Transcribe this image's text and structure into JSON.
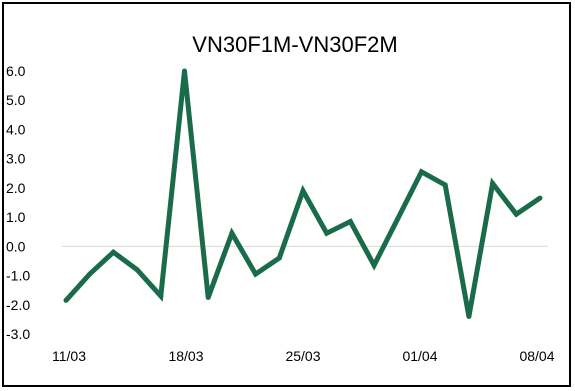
{
  "chart_data": {
    "type": "line",
    "title": "VN30F1M-VN30F2M",
    "xlabel": "",
    "ylabel": "",
    "ylim": [
      -3.0,
      6.0
    ],
    "y_ticks": [
      "6.0",
      "5.0",
      "4.0",
      "3.0",
      "2.0",
      "1.0",
      "0.0",
      "-1.0",
      "-2.0",
      "-3.0"
    ],
    "x_ticks": [
      "11/03",
      "18/03",
      "25/03",
      "01/04",
      "08/04"
    ],
    "grid": false,
    "legend": "none",
    "colors": {
      "line": "#1a6b4a",
      "zero_axis": "#d9d9d9"
    },
    "series": [
      {
        "values": [
          -1.85,
          -0.95,
          -0.2,
          -0.8,
          -1.7,
          6.0,
          -1.75,
          0.45,
          -0.95,
          -0.4,
          1.9,
          0.45,
          0.85,
          -0.65,
          0.95,
          2.55,
          2.1,
          -2.4,
          2.15,
          1.1,
          1.65
        ]
      }
    ]
  }
}
